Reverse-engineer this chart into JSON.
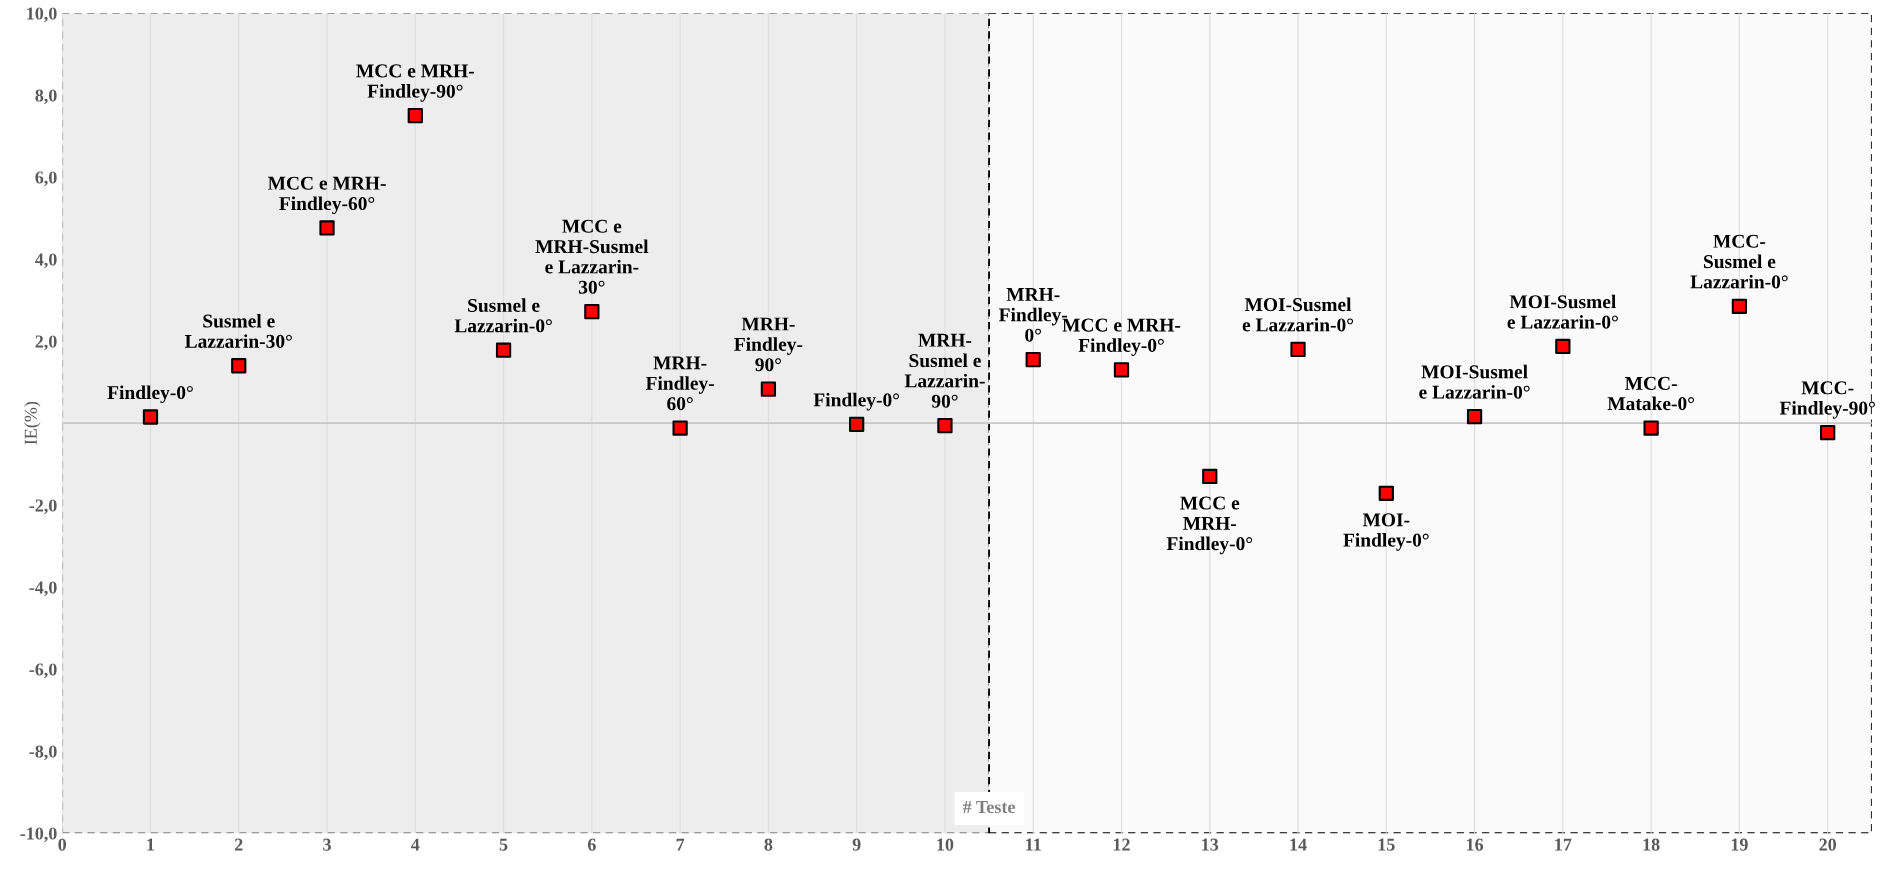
{
  "chart_data": {
    "type": "scatter",
    "xlabel": "# Teste",
    "ylabel": "IE(%)",
    "x": [
      1,
      2,
      3,
      4,
      5,
      6,
      7,
      8,
      9,
      10,
      11,
      12,
      13,
      14,
      15,
      16,
      17,
      18,
      19,
      20
    ],
    "values": [
      0.15,
      1.4,
      4.76,
      7.5,
      1.78,
      2.72,
      -0.12,
      0.83,
      -0.03,
      -0.06,
      1.55,
      1.3,
      -1.3,
      1.8,
      -1.71,
      0.16,
      1.87,
      -0.12,
      2.85,
      -0.23
    ],
    "color": "#ff0000",
    "marker": "square",
    "xlim": [
      0,
      20.5
    ],
    "xticks": [
      0,
      1,
      2,
      3,
      4,
      5,
      6,
      7,
      8,
      9,
      10,
      11,
      12,
      13,
      14,
      15,
      16,
      17,
      18,
      19,
      20
    ],
    "ylim": [
      -10,
      10
    ],
    "yticks": [
      {
        "value": -10,
        "label": "-10,0"
      },
      {
        "value": -8,
        "label": "-8,0"
      },
      {
        "value": -6,
        "label": "-6,0"
      },
      {
        "value": -4,
        "label": "-4,0"
      },
      {
        "value": -2,
        "label": "-2,0"
      },
      {
        "value": 0,
        "label": null
      },
      {
        "value": 2,
        "label": "2,0"
      },
      {
        "value": 4,
        "label": "4,0"
      },
      {
        "value": 6,
        "label": "6,0"
      },
      {
        "value": 8,
        "label": "8,0"
      },
      {
        "value": 10,
        "label": "10,0"
      }
    ],
    "grid": "x",
    "ref_lines": [
      {
        "axis": "y",
        "value": 0,
        "color": "#c8c8c8"
      }
    ],
    "bands": [
      {
        "axis": "x",
        "from": 0,
        "to": 10.5,
        "color": "#ededed"
      },
      {
        "axis": "x",
        "from": 10.5,
        "to": 20.5,
        "color": "#fafafa"
      }
    ],
    "annotations": [
      {
        "text": "Findley-0°",
        "x": 1,
        "y": 0.15
      },
      {
        "text": "Susmel e\nLazzarin-30°",
        "x": 2,
        "y": 1.4
      },
      {
        "text": "MCC e MRH-\nFindley-60°",
        "x": 3,
        "y": 4.76
      },
      {
        "text": "MCC e MRH-\nFindley-90°",
        "x": 4,
        "y": 7.5
      },
      {
        "text": "Susmel e\nLazzarin-0°",
        "x": 5,
        "y": 1.78
      },
      {
        "text": "MCC e\nMRH-Susmel\ne Lazzarin-\n30°",
        "x": 6,
        "y": 2.72
      },
      {
        "text": "MRH-\nFindley-\n60°",
        "x": 7,
        "y": -0.12
      },
      {
        "text": "MRH-\nFindley-\n90°",
        "x": 8,
        "y": 0.83
      },
      {
        "text": "Findley-0°",
        "x": 9,
        "y": -0.03
      },
      {
        "text": "MRH-\nSusmel e\nLazzarin-\n90°",
        "x": 10,
        "y": -0.06
      },
      {
        "text": "MRH-\nFindley-\n0°",
        "x": 11,
        "y": 1.55
      },
      {
        "text": "MCC e MRH-\nFindley-0°",
        "x": 12,
        "y": 1.3
      },
      {
        "text": "MCC e\nMRH-\nFindley-0°",
        "x": 13,
        "y": -1.3
      },
      {
        "text": "MOI-Susmel\ne Lazzarin-0°",
        "x": 14,
        "y": 1.8
      },
      {
        "text": "MOI-\nFindley-0°",
        "x": 15,
        "y": -1.71
      },
      {
        "text": "MOI-Susmel\ne Lazzarin-0°",
        "x": 16,
        "y": 0.16
      },
      {
        "text": "MOI-Susmel\ne Lazzarin-0°",
        "x": 17,
        "y": 1.87
      },
      {
        "text": "MCC-\nMatake-0°",
        "x": 18,
        "y": -0.12
      },
      {
        "text": "MCC-\nSusmel e\nLazzarin-0°",
        "x": 19,
        "y": 2.85
      },
      {
        "text": "MCC-\nFindley-90°",
        "x": 20,
        "y": -0.23
      }
    ]
  }
}
